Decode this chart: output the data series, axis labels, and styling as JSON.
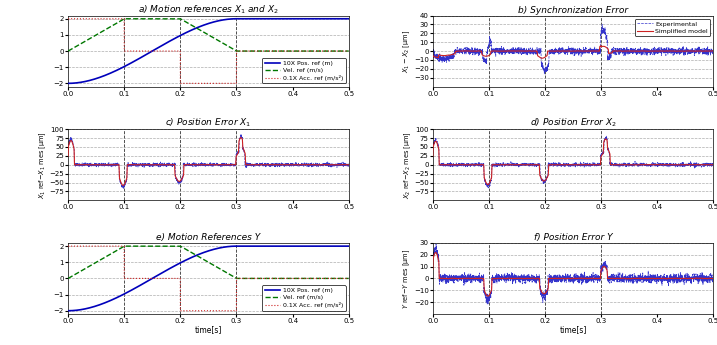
{
  "fig_width": 7.17,
  "fig_height": 3.45,
  "titles": {
    "a": "a) Motion references $X_1$ and $X_2$",
    "b": "b) Synchronization Error",
    "c": "c) Position Error $X_1$",
    "d": "d) Position Error $X_2$",
    "e": "e) Motion References Y",
    "f": "f) Position Error Y"
  },
  "colors": {
    "blue_solid": "#0000BB",
    "green_dash": "#007700",
    "red_dot": "#CC2222",
    "red_solid": "#CC2222",
    "blue_dashdot": "#3333CC",
    "vline_color": "#333333",
    "grid_color": "#999999"
  },
  "legend_a": [
    "10X Pos. ref (m)",
    "Vel. ref (m/s)",
    "0.1X Acc. ref (m/s²)"
  ],
  "legend_b": [
    "Simplified model",
    "Experimental"
  ],
  "ylim_a": [
    -2.2,
    2.2
  ],
  "ylim_b": [
    -40,
    40
  ],
  "ylim_c": [
    -100,
    100
  ],
  "ylim_d": [
    -100,
    100
  ],
  "ylim_e": [
    -2.2,
    2.2
  ],
  "ylim_f": [
    -30,
    30
  ],
  "yticks_a": [
    -2,
    -1,
    0,
    1,
    2
  ],
  "yticks_b": [
    -30,
    -20,
    -10,
    0,
    10,
    20,
    30,
    40
  ],
  "yticks_c": [
    -75,
    -50,
    -25,
    0,
    25,
    50,
    75,
    100
  ],
  "yticks_d": [
    -75,
    -50,
    -25,
    0,
    25,
    50,
    75,
    100
  ],
  "yticks_e": [
    -2,
    -1,
    0,
    1,
    2
  ],
  "yticks_f": [
    -20,
    -10,
    0,
    10,
    20,
    30
  ],
  "xticks": [
    0,
    0.1,
    0.2,
    0.3,
    0.4,
    0.5
  ],
  "vlines": [
    0.1,
    0.2,
    0.3
  ]
}
